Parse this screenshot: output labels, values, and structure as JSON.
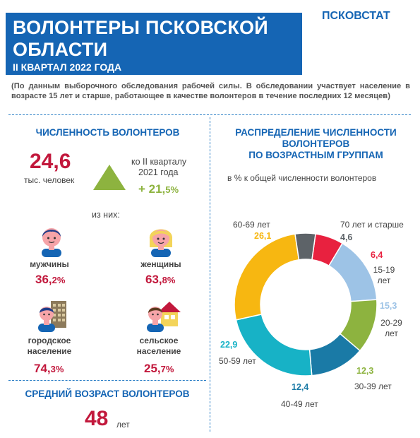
{
  "header": {
    "title_line1": "ВОЛОНТЕРЫ ПСКОВСКОЙ",
    "title_line2": "ОБЛАСТИ",
    "subtitle": "II КВАРТАЛ 2022 ГОДА",
    "agency": "ПСКОВСТАТ"
  },
  "note": "(По данным выборочного обследования рабочей силы. В обследовании участвует население в возрасте 15 лет и старше, работающее в качестве волонтеров в течение последних 12 месяцев)",
  "count": {
    "title": "ЧИСЛЕННОСТЬ ВОЛОНТЕРОВ",
    "value": "24,6",
    "unit": "тыс. человек",
    "compare_line1": "ко  II кварталу",
    "compare_line2": "2021 года",
    "change_main": "+ 21,",
    "change_small": "5%",
    "of_them": "из них:"
  },
  "groups": {
    "men": {
      "label": "мужчины",
      "value_main": "36,",
      "value_small": "2%"
    },
    "women": {
      "label": "женщины",
      "value_main": "63,",
      "value_small": "8%"
    },
    "urban": {
      "label_line1": "городское",
      "label_line2": "население",
      "value_main": "74,",
      "value_small": "3%"
    },
    "rural": {
      "label_line1": "сельское",
      "label_line2": "население",
      "value_main": "25,",
      "value_small": "7%"
    }
  },
  "avg_age": {
    "title": "СРЕДНИЙ  ВОЗРАСТ  ВОЛОНТЕРОВ",
    "value": "48",
    "unit": "лет"
  },
  "colors": {
    "brand_blue": "#1565b4",
    "accent_red": "#c2183c",
    "accent_green": "#8db33f"
  },
  "chart_data": {
    "type": "pie",
    "title": "РАСПРЕДЕЛЕНИЕ ЧИСЛЕННОСТИ ВОЛОНТЕРОВ ПО ВОЗРАСТНЫМ ГРУППАМ",
    "title_line1": "РАСПРЕДЕЛЕНИЕ ЧИСЛЕННОСТИ",
    "title_line2": "ВОЛОНТЕРОВ",
    "title_line3": "ПО ВОЗРАСТНЫМ ГРУППАМ",
    "subtitle": "в % к общей численности волонтеров",
    "donut": true,
    "categories": [
      "15-19 лет",
      "20-29 лет",
      "30-39 лет",
      "40-49 лет",
      "50-59 лет",
      "60-69 лет",
      "70 лет и старше"
    ],
    "values": [
      6.4,
      15.3,
      12.3,
      12.4,
      22.9,
      26.1,
      4.6
    ],
    "value_labels": [
      "6,4",
      "15,3",
      "12,3",
      "12,4",
      "22,9",
      "26,1",
      "4,6"
    ],
    "colors": [
      "#e8213f",
      "#9dc3e6",
      "#8db33f",
      "#1a7aa6",
      "#17b2c6",
      "#f7b711",
      "#5d6368"
    ]
  }
}
